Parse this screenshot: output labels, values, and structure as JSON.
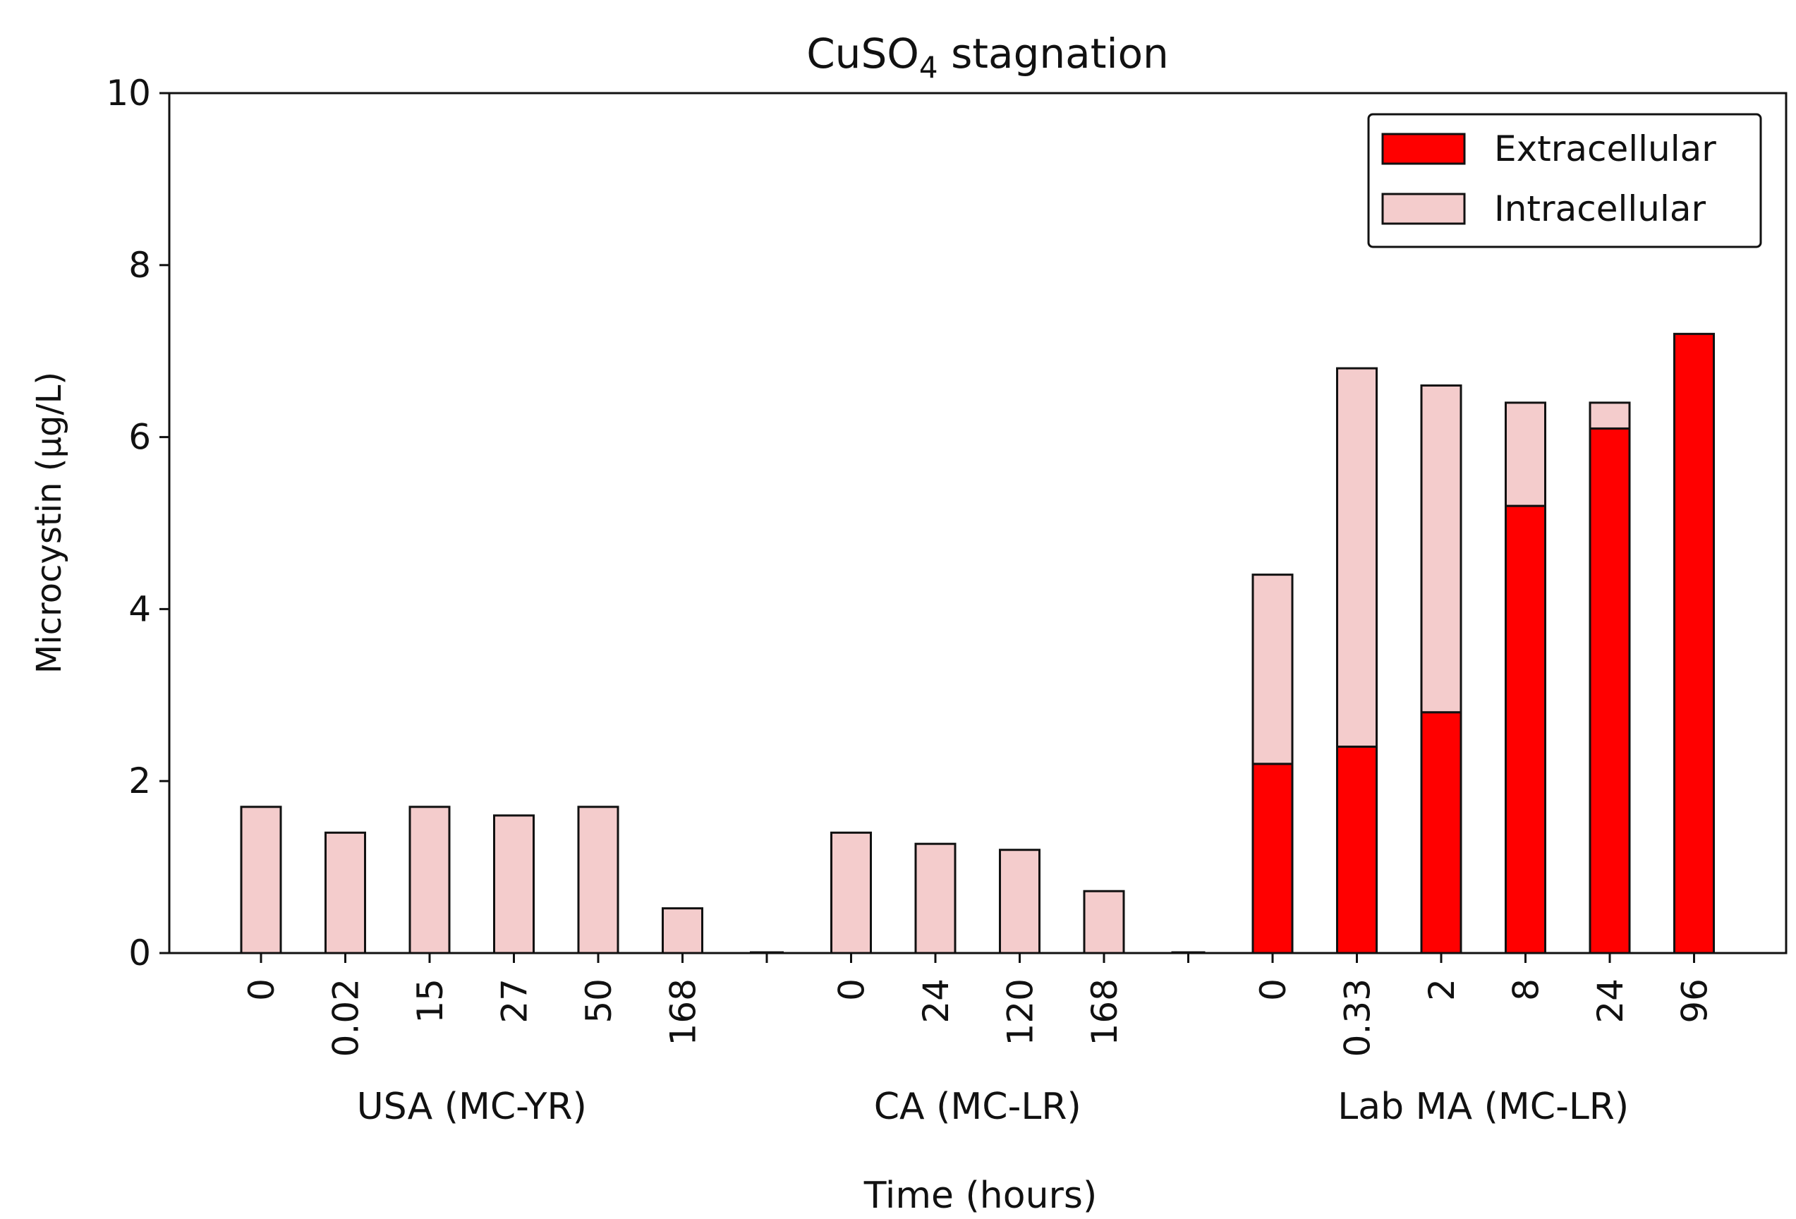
{
  "chart_data": {
    "type": "bar",
    "stacked": true,
    "title_main": "CuSO",
    "title_sub": "4",
    "title_rest": " stagnation",
    "xlabel": "Time (hours)",
    "ylabel": "Microcystin (μg/L)",
    "ylim": [
      0,
      10
    ],
    "yticks": [
      "0",
      "2",
      "4",
      "6",
      "8",
      "10"
    ],
    "legend_position": "top-right",
    "colors": {
      "extracellular": "#ff0000",
      "intracellular": "#f4cccc",
      "edge": "#111111"
    },
    "series": [
      {
        "name": "Extracellular"
      },
      {
        "name": "Intracellular"
      }
    ],
    "groups": [
      {
        "label": "USA (MC-YR)",
        "bars": [
          {
            "tick": "0",
            "extracellular": 0,
            "intracellular": 1.7
          },
          {
            "tick": "0.02",
            "extracellular": 0,
            "intracellular": 1.4
          },
          {
            "tick": "15",
            "extracellular": 0,
            "intracellular": 1.7
          },
          {
            "tick": "27",
            "extracellular": 0,
            "intracellular": 1.6
          },
          {
            "tick": "50",
            "extracellular": 0,
            "intracellular": 1.7
          },
          {
            "tick": "168",
            "extracellular": 0,
            "intracellular": 0.52
          }
        ]
      },
      {
        "label": "CA (MC-LR)",
        "bars": [
          {
            "tick": "0",
            "extracellular": 0,
            "intracellular": 1.4
          },
          {
            "tick": "24",
            "extracellular": 0,
            "intracellular": 1.27
          },
          {
            "tick": "120",
            "extracellular": 0,
            "intracellular": 1.2
          },
          {
            "tick": "168",
            "extracellular": 0,
            "intracellular": 0.72
          }
        ]
      },
      {
        "label": "Lab MA (MC-LR)",
        "bars": [
          {
            "tick": "0",
            "extracellular": 2.2,
            "intracellular": 2.2
          },
          {
            "tick": "0.33",
            "extracellular": 2.4,
            "intracellular": 4.4
          },
          {
            "tick": "2",
            "extracellular": 2.8,
            "intracellular": 3.8
          },
          {
            "tick": "8",
            "extracellular": 5.2,
            "intracellular": 1.2
          },
          {
            "tick": "24",
            "extracellular": 6.1,
            "intracellular": 0.3
          },
          {
            "tick": "96",
            "extracellular": 7.2,
            "intracellular": 0
          }
        ]
      }
    ]
  }
}
